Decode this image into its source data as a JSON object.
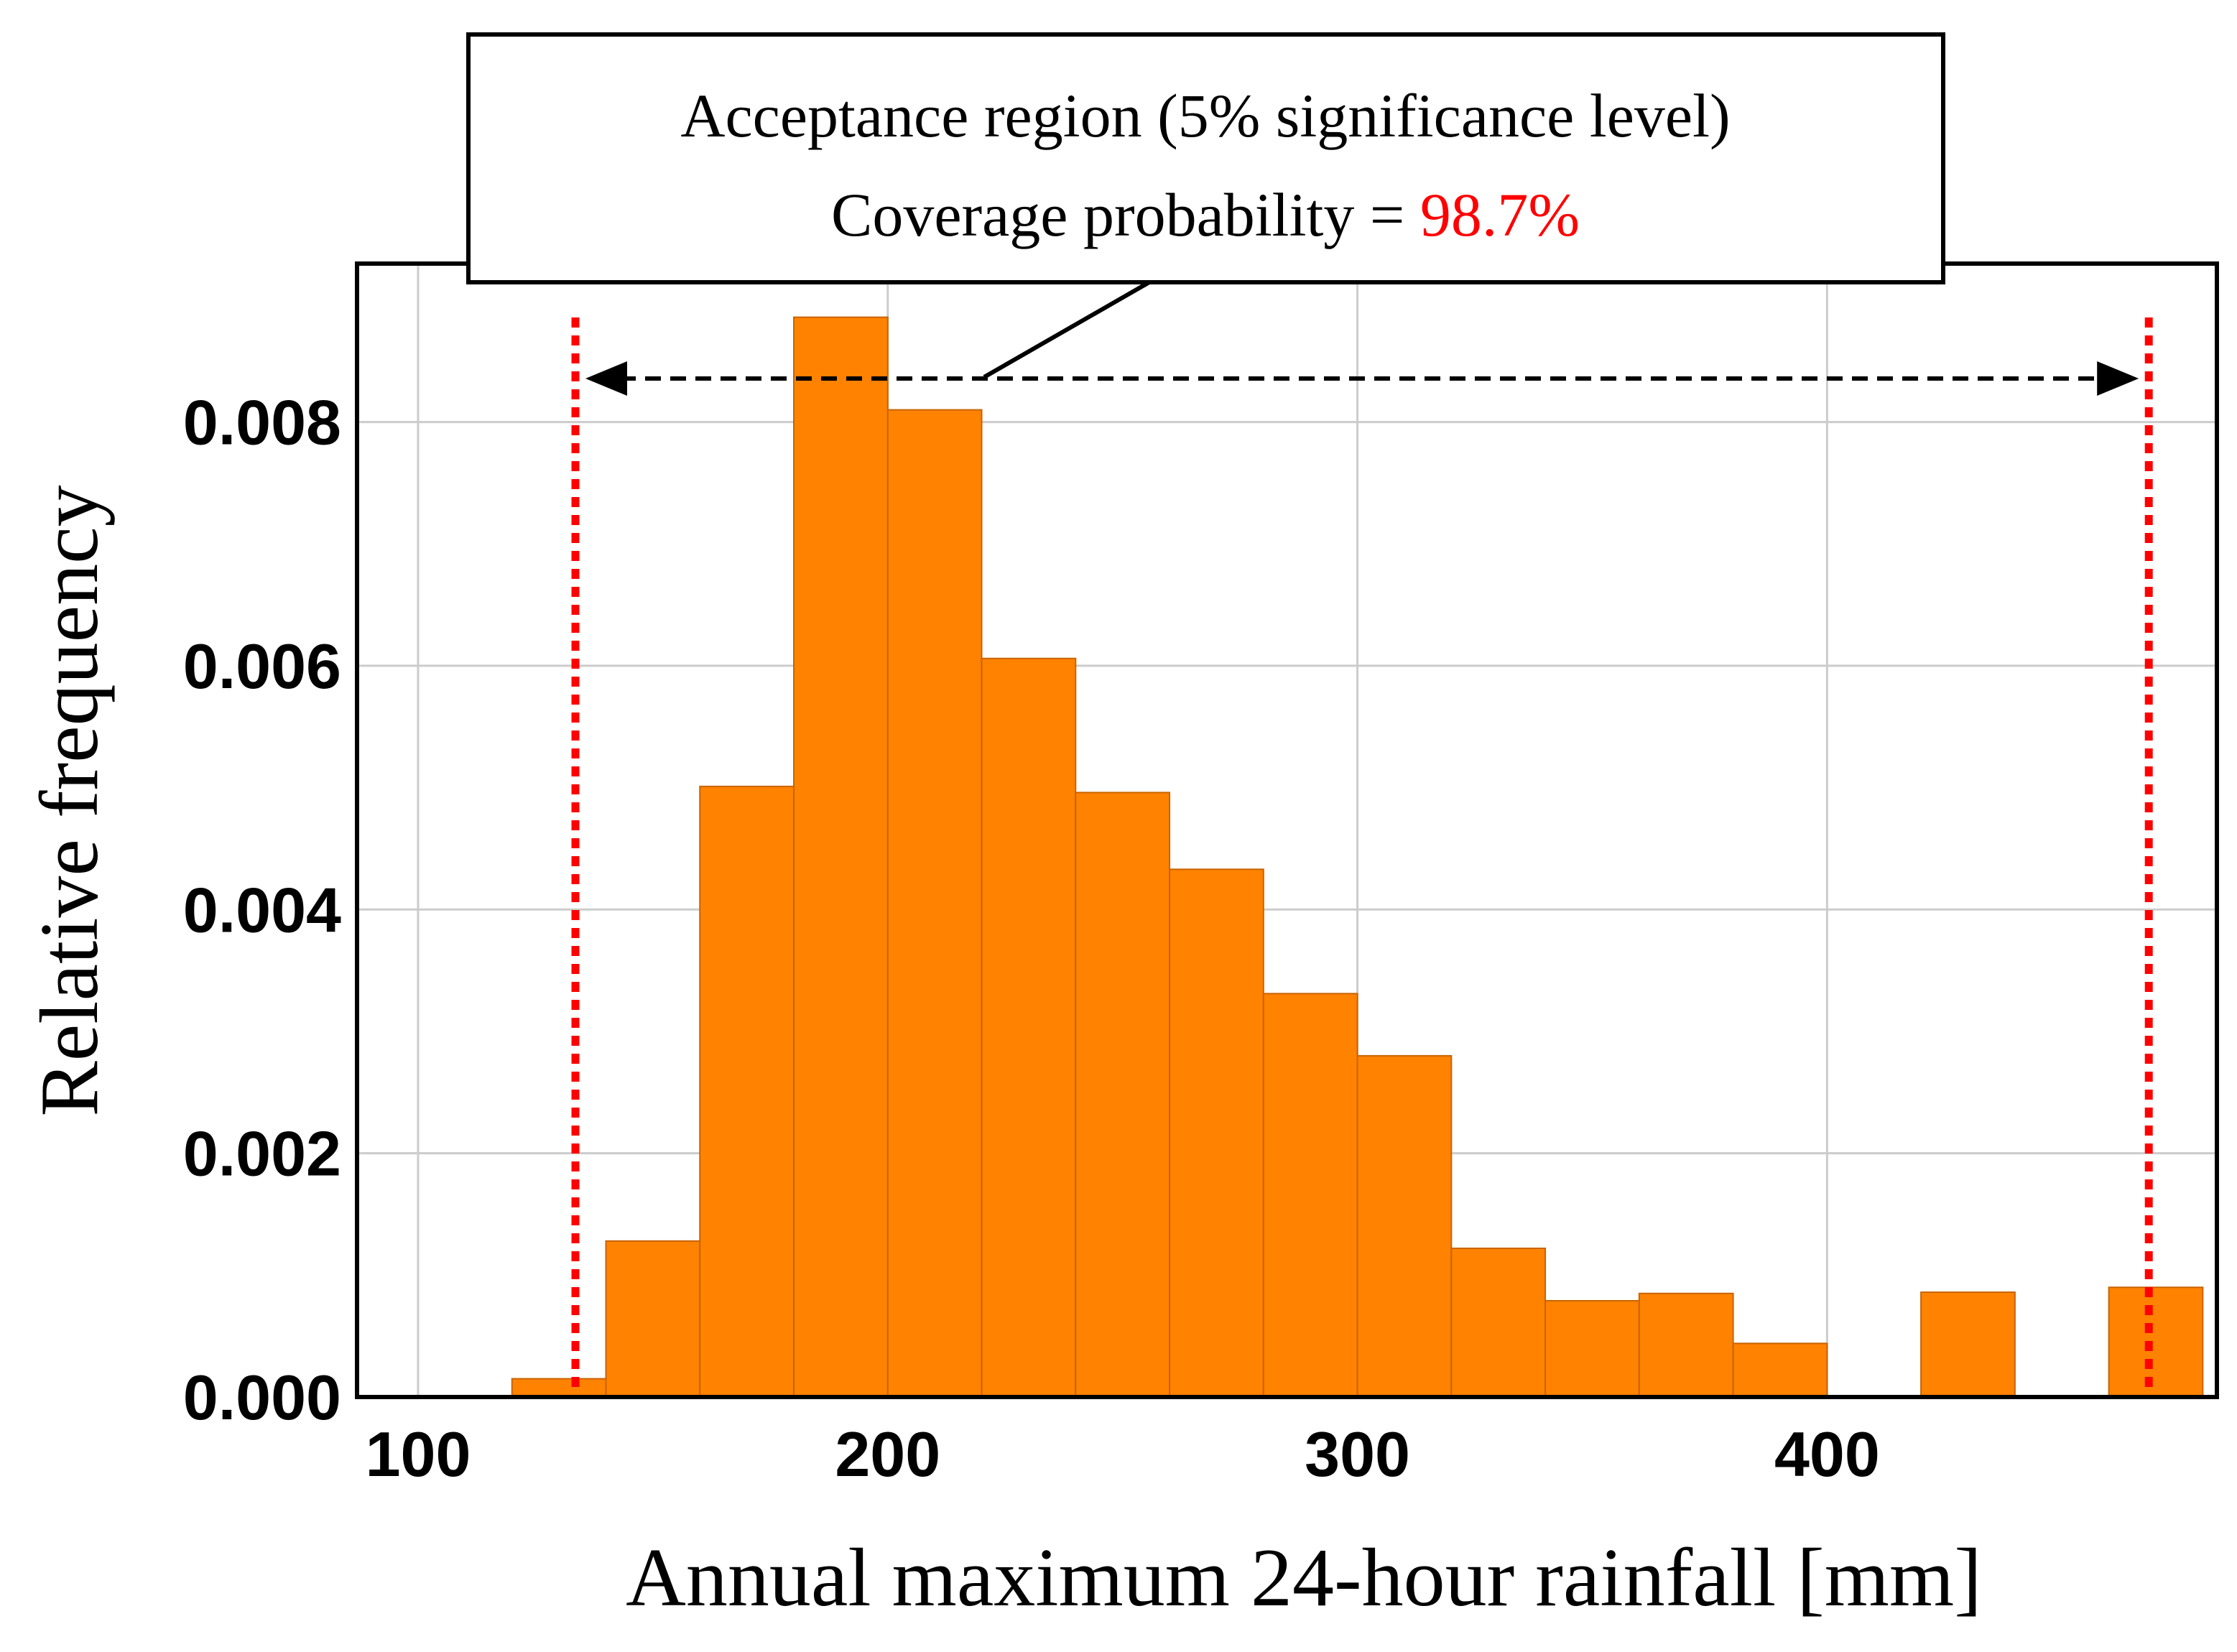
{
  "chart_data": {
    "type": "bar",
    "subtype": "histogram",
    "xlabel": "Annual maximum 24-hour rainfall [mm]",
    "ylabel": "Relative frequency",
    "xlim": [
      87,
      483
    ],
    "ylim": [
      0,
      0.0093
    ],
    "x_ticks": [
      100,
      200,
      300,
      400
    ],
    "x_tick_labels": [
      "100",
      "200",
      "300",
      "400"
    ],
    "y_ticks": [
      0,
      0.002,
      0.004,
      0.006,
      0.008
    ],
    "y_tick_labels": [
      "0.000",
      "0.002",
      "0.004",
      "0.006",
      "0.008"
    ],
    "grid": true,
    "bar_color": "#ff8200",
    "bar_edge_color": "#c86400",
    "bins": [
      {
        "start": 120,
        "end": 140,
        "value": 0.00015
      },
      {
        "start": 140,
        "end": 160,
        "value": 0.00128
      },
      {
        "start": 160,
        "end": 180,
        "value": 0.00501
      },
      {
        "start": 180,
        "end": 200,
        "value": 0.00886
      },
      {
        "start": 200,
        "end": 220,
        "value": 0.0081
      },
      {
        "start": 220,
        "end": 240,
        "value": 0.00606
      },
      {
        "start": 240,
        "end": 260,
        "value": 0.00496
      },
      {
        "start": 260,
        "end": 280,
        "value": 0.00433
      },
      {
        "start": 280,
        "end": 300,
        "value": 0.00331
      },
      {
        "start": 300,
        "end": 320,
        "value": 0.0028
      },
      {
        "start": 320,
        "end": 340,
        "value": 0.00122
      },
      {
        "start": 340,
        "end": 360,
        "value": 0.00079
      },
      {
        "start": 360,
        "end": 380,
        "value": 0.00085
      },
      {
        "start": 380,
        "end": 400,
        "value": 0.00044
      },
      {
        "start": 400,
        "end": 420,
        "value": 0.0
      },
      {
        "start": 420,
        "end": 440,
        "value": 0.00086
      },
      {
        "start": 440,
        "end": 460,
        "value": 0.0
      },
      {
        "start": 460,
        "end": 480,
        "value": 0.0009
      }
    ],
    "acceptance_region": {
      "lower": 133.5,
      "upper": 468.5,
      "color": "#ff0000"
    },
    "annotation": {
      "line1": "Acceptance region (5% significance level)",
      "line2_prefix": "Coverage probability = ",
      "line2_value": "98.7%",
      "value_color": "#ff0000"
    }
  }
}
